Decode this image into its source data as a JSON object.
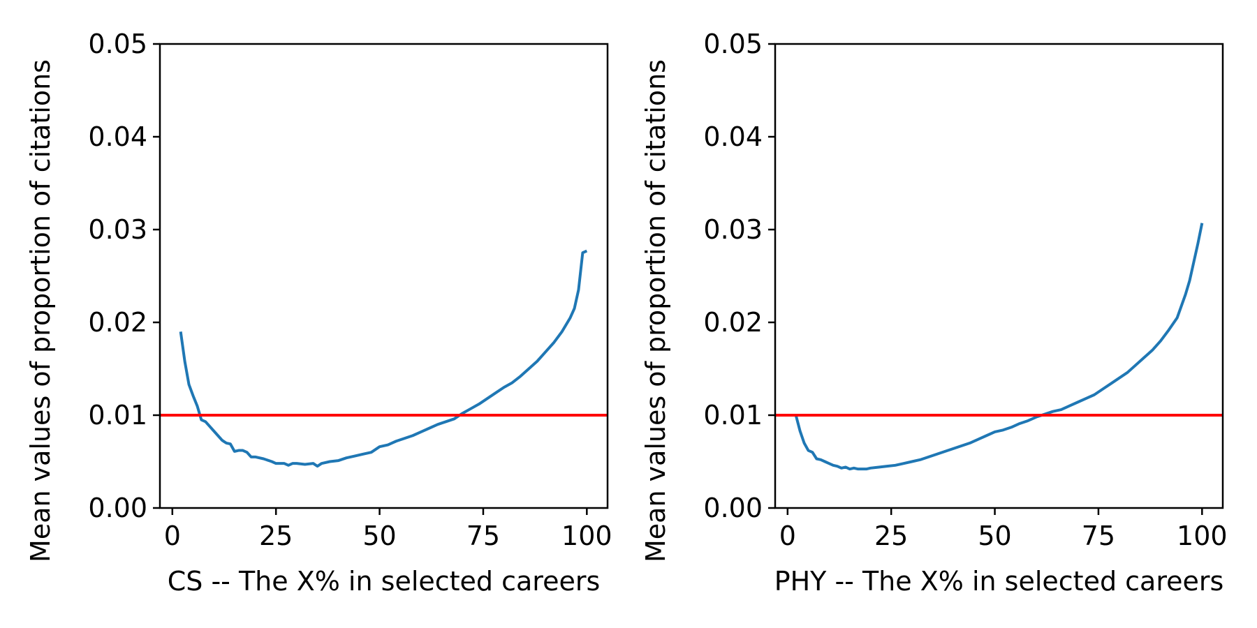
{
  "chart_data": [
    {
      "type": "line",
      "xlabel": "CS -- The X% in selected careers",
      "ylabel": "Mean values of proportion of citations",
      "xlim": [
        -3,
        105
      ],
      "ylim": [
        0,
        0.05
      ],
      "xticks": [
        "0",
        "25",
        "50",
        "75",
        "100"
      ],
      "yticks": [
        "0.00",
        "0.01",
        "0.02",
        "0.03",
        "0.04",
        "0.05"
      ],
      "grid": false,
      "reference_line": {
        "y": 0.01,
        "color": "#ff0000"
      },
      "series": [
        {
          "color": "#1f77b4",
          "x": [
            2,
            3,
            4,
            5,
            6,
            7,
            8,
            9,
            10,
            11,
            12,
            13,
            14,
            15,
            16,
            17,
            18,
            19,
            20,
            22,
            24,
            25,
            26,
            27,
            28,
            29,
            30,
            32,
            34,
            35,
            36,
            38,
            40,
            42,
            44,
            46,
            48,
            50,
            52,
            54,
            56,
            58,
            60,
            62,
            64,
            66,
            68,
            70,
            72,
            74,
            76,
            78,
            80,
            82,
            84,
            86,
            88,
            90,
            92,
            94,
            96,
            97,
            98,
            99,
            100
          ],
          "values": [
            0.019,
            0.0158,
            0.0133,
            0.0121,
            0.011,
            0.0095,
            0.0093,
            0.0088,
            0.0083,
            0.0078,
            0.0073,
            0.007,
            0.0069,
            0.0061,
            0.0062,
            0.0062,
            0.006,
            0.0055,
            0.0055,
            0.0053,
            0.005,
            0.0048,
            0.0048,
            0.0048,
            0.0046,
            0.0048,
            0.0048,
            0.0047,
            0.0048,
            0.0045,
            0.0048,
            0.005,
            0.0051,
            0.0054,
            0.0056,
            0.0058,
            0.006,
            0.0066,
            0.0068,
            0.0072,
            0.0075,
            0.0078,
            0.0082,
            0.0086,
            0.009,
            0.0093,
            0.0096,
            0.0102,
            0.0107,
            0.0112,
            0.0118,
            0.0124,
            0.013,
            0.0135,
            0.0142,
            0.015,
            0.0158,
            0.0168,
            0.0178,
            0.019,
            0.0205,
            0.0215,
            0.0235,
            0.0275,
            0.0277
          ]
        }
      ]
    },
    {
      "type": "line",
      "xlabel": "PHY -- The X% in selected careers",
      "ylabel": "Mean values of proportion of citations",
      "xlim": [
        -3,
        105
      ],
      "ylim": [
        0,
        0.05
      ],
      "xticks": [
        "0",
        "25",
        "50",
        "75",
        "100"
      ],
      "yticks": [
        "0.00",
        "0.01",
        "0.02",
        "0.03",
        "0.04",
        "0.05"
      ],
      "grid": false,
      "reference_line": {
        "y": 0.01,
        "color": "#ff0000"
      },
      "series": [
        {
          "color": "#1f77b4",
          "x": [
            2,
            3,
            4,
            5,
            6,
            7,
            8,
            9,
            10,
            11,
            12,
            13,
            14,
            15,
            16,
            17,
            18,
            19,
            20,
            22,
            24,
            26,
            28,
            30,
            32,
            34,
            36,
            38,
            40,
            42,
            44,
            46,
            48,
            50,
            52,
            54,
            56,
            58,
            60,
            62,
            64,
            66,
            68,
            70,
            72,
            74,
            76,
            78,
            80,
            82,
            84,
            86,
            88,
            90,
            92,
            94,
            96,
            97,
            98,
            99,
            100
          ],
          "values": [
            0.01,
            0.0083,
            0.007,
            0.0062,
            0.006,
            0.0053,
            0.0052,
            0.005,
            0.0048,
            0.0046,
            0.0045,
            0.0043,
            0.0044,
            0.0042,
            0.0043,
            0.0042,
            0.0042,
            0.0042,
            0.0043,
            0.0044,
            0.0045,
            0.0046,
            0.0048,
            0.005,
            0.0052,
            0.0055,
            0.0058,
            0.0061,
            0.0064,
            0.0067,
            0.007,
            0.0074,
            0.0078,
            0.0082,
            0.0084,
            0.0087,
            0.0091,
            0.0094,
            0.0098,
            0.0101,
            0.0104,
            0.0106,
            0.011,
            0.0114,
            0.0118,
            0.0122,
            0.0128,
            0.0134,
            0.014,
            0.0146,
            0.0154,
            0.0162,
            0.017,
            0.018,
            0.0192,
            0.0205,
            0.023,
            0.0245,
            0.0265,
            0.0285,
            0.0307
          ]
        }
      ]
    }
  ]
}
